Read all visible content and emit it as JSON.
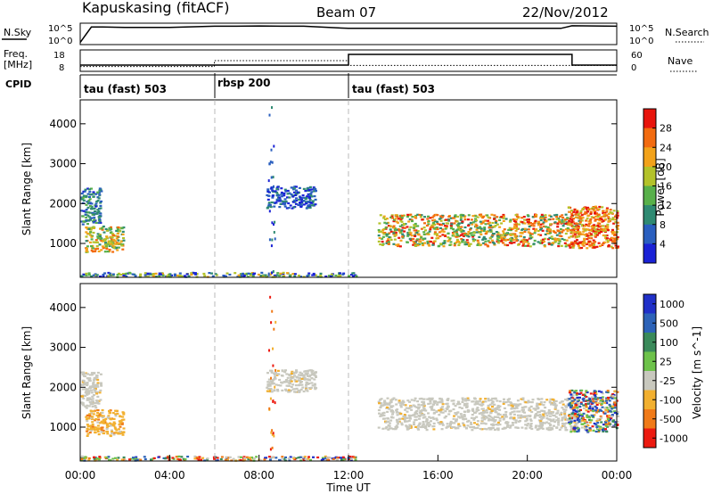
{
  "header": {
    "station": "Kapuskasing (fitACF)",
    "beam": "Beam 07",
    "date": "22/Nov/2012"
  },
  "side_labels": {
    "nsky": "N.Sky",
    "freq_line1": "Freq.",
    "freq_line2": "[MHz]",
    "cpid": "CPID",
    "nsearch": "N.Search",
    "nave": "Nave"
  },
  "cpid_segments": [
    {
      "label": "tau (fast) 503",
      "start_hour": 0,
      "end_hour": 6
    },
    {
      "label": "rbsp 200",
      "start_hour": 6,
      "end_hour": 12
    },
    {
      "label": "tau (fast) 503",
      "start_hour": 12,
      "end_hour": 24
    }
  ],
  "colors": {
    "power_scale": [
      "#1a22d6",
      "#2a5fbf",
      "#2f8a72",
      "#58b04a",
      "#b3c22a",
      "#f2a21a",
      "#f26b10",
      "#e8140c"
    ],
    "velocity_scale": [
      "#2030c8",
      "#2d63b8",
      "#3a8a5a",
      "#6dc24a",
      "#c8c8be",
      "#f2b030",
      "#f07a18",
      "#ec1a10"
    ],
    "velocity_neutral": "#c8c8be"
  },
  "chart_data": [
    {
      "type": "line",
      "panel": "nsky-nsearch",
      "x_unit": "hours UT",
      "xlim": [
        0,
        24
      ],
      "y_ticks_left": [
        "10^5",
        "10^0"
      ],
      "y_ticks_right": [
        "10^5",
        "10^0"
      ],
      "x": [
        0,
        0.5,
        1,
        2,
        4,
        6,
        7,
        8,
        9,
        10,
        12,
        14,
        16,
        18,
        20,
        21.5,
        22,
        24
      ],
      "nsky_level": [
        0.1,
        0.82,
        0.82,
        0.8,
        0.8,
        0.86,
        0.86,
        0.87,
        0.86,
        0.86,
        0.76,
        0.76,
        0.76,
        0.76,
        0.76,
        0.76,
        0.88,
        0.86
      ]
    },
    {
      "type": "line",
      "panel": "freq-nave",
      "x_unit": "hours UT",
      "xlim": [
        0,
        24
      ],
      "y_ticks_left": [
        "18",
        "8"
      ],
      "y_ticks_right": [
        "60",
        "0"
      ],
      "freq_mhz_steps": [
        {
          "start": 0,
          "end": 12,
          "value": 10.5
        },
        {
          "start": 12,
          "end": 22,
          "value": 16.5
        },
        {
          "start": 22,
          "end": 24,
          "value": 10.5
        }
      ],
      "nave_steps": [
        {
          "start": 0,
          "end": 6,
          "value": 10
        },
        {
          "start": 6,
          "end": 12,
          "value": 30
        },
        {
          "start": 12,
          "end": 24,
          "value": 14
        }
      ]
    },
    {
      "type": "heatmap",
      "panel": "power",
      "x_unit": "hours UT",
      "xlim": [
        0,
        24
      ],
      "ylabel": "Slant Range [km]",
      "ylim": [
        150,
        4600
      ],
      "y_ticks": [
        1000,
        2000,
        3000,
        4000
      ],
      "colorbar_label": "Power [dB]",
      "colorbar_ticks": [
        "4",
        "8",
        "12",
        "16",
        "20",
        "24",
        "28"
      ],
      "scatter_regions": [
        {
          "x": [
            0,
            0.9
          ],
          "y": [
            1500,
            2400
          ],
          "level": [
            0.1,
            0.45
          ]
        },
        {
          "x": [
            0.2,
            1.9
          ],
          "y": [
            800,
            1450
          ],
          "level": [
            0.3,
            0.85
          ]
        },
        {
          "x": [
            8.3,
            10.5
          ],
          "y": [
            1900,
            2450
          ],
          "level": [
            0.0,
            0.35
          ]
        },
        {
          "x": [
            13.3,
            22.3
          ],
          "y": [
            950,
            1750
          ],
          "level": [
            0.25,
            0.95
          ]
        },
        {
          "x": [
            21.8,
            24
          ],
          "y": [
            900,
            1950
          ],
          "level": [
            0.5,
            1.0
          ]
        },
        {
          "x": [
            0,
            12.3
          ],
          "y": [
            180,
            290
          ],
          "level": [
            0.0,
            0.7
          ]
        }
      ]
    },
    {
      "type": "heatmap",
      "panel": "velocity",
      "x_unit": "hours UT",
      "xlim": [
        0,
        24
      ],
      "ylabel": "Slant Range [km]",
      "ylim": [
        150,
        4600
      ],
      "y_ticks": [
        1000,
        2000,
        3000,
        4000
      ],
      "colorbar_label": "Velocity [m s^-1]",
      "colorbar_ticks": [
        "1000",
        "500",
        "100",
        "25",
        "-25",
        "-100",
        "-500",
        "-1000"
      ],
      "x_ticks": [
        "00:00",
        "04:00",
        "08:00",
        "12:00",
        "16:00",
        "20:00",
        "00:00"
      ],
      "xlabel": "Time UT",
      "scatter_regions": [
        {
          "x": [
            0,
            0.9
          ],
          "y": [
            1500,
            2400
          ],
          "vel": "neutral"
        },
        {
          "x": [
            0.2,
            1.9
          ],
          "y": [
            800,
            1450
          ],
          "vel": "negative"
        },
        {
          "x": [
            8.3,
            10.5
          ],
          "y": [
            1900,
            2450
          ],
          "vel": "neutral"
        },
        {
          "x": [
            13.3,
            22.3
          ],
          "y": [
            950,
            1750
          ],
          "vel": "neutral"
        },
        {
          "x": [
            21.8,
            24
          ],
          "y": [
            900,
            1950
          ],
          "vel": "mixed"
        },
        {
          "x": [
            0,
            12.3
          ],
          "y": [
            180,
            290
          ],
          "vel": "mixed"
        }
      ]
    }
  ]
}
